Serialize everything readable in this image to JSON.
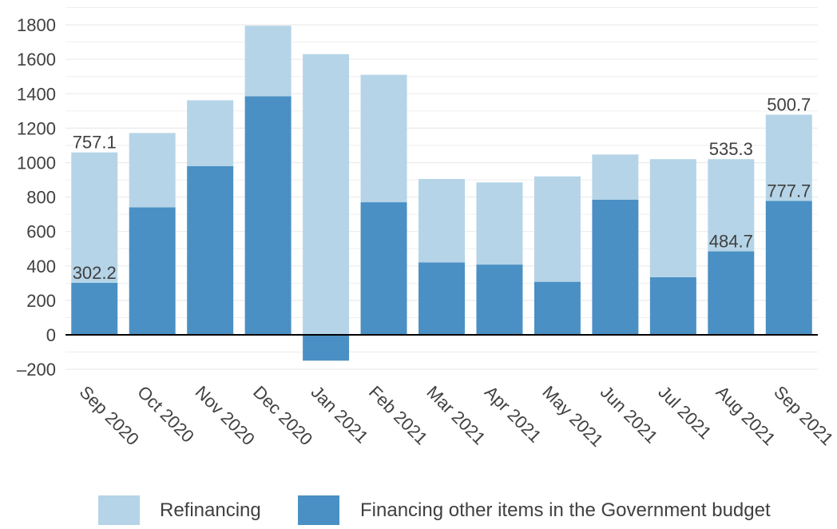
{
  "chart_data": {
    "type": "bar",
    "stacked": true,
    "title": "",
    "xlabel": "",
    "ylabel": "",
    "ylim": [
      -200,
      1900
    ],
    "yticks": [
      -200,
      0,
      200,
      400,
      600,
      800,
      1000,
      1200,
      1400,
      1600,
      1800
    ],
    "ytick_labels": [
      "–200",
      "0",
      "200",
      "400",
      "600",
      "800",
      "1000",
      "1200",
      "1400",
      "1600",
      "1800"
    ],
    "grid": true,
    "legend_position": "bottom",
    "categories": [
      "Sep 2020",
      "Oct 2020",
      "Nov 2020",
      "Dec 2020",
      "Jan 2021",
      "Feb 2021",
      "Mar 2021",
      "Apr 2021",
      "May 2021",
      "Jun 2021",
      "Jul 2021",
      "Aug 2021",
      "Sep 2021"
    ],
    "series": [
      {
        "name": "Financing other items in the Government budget",
        "color": "#4a90c4",
        "values": [
          302.2,
          740,
          980,
          1385,
          -150,
          770,
          420,
          408,
          308,
          785,
          335,
          484.7,
          777.7
        ]
      },
      {
        "name": "Refinancing",
        "color": "#b5d4e7",
        "values": [
          757.1,
          432,
          382,
          410,
          1630,
          740,
          485,
          477,
          612,
          262,
          685,
          535.3,
          500.7
        ]
      }
    ],
    "data_labels": [
      {
        "category_index": 0,
        "series_index": 0,
        "text": "302.2"
      },
      {
        "category_index": 0,
        "series_index": 1,
        "text": "757.1"
      },
      {
        "category_index": 11,
        "series_index": 0,
        "text": "484.7"
      },
      {
        "category_index": 11,
        "series_index": 1,
        "text": "535.3"
      },
      {
        "category_index": 12,
        "series_index": 0,
        "text": "777.7"
      },
      {
        "category_index": 12,
        "series_index": 1,
        "text": "500.7"
      }
    ]
  }
}
